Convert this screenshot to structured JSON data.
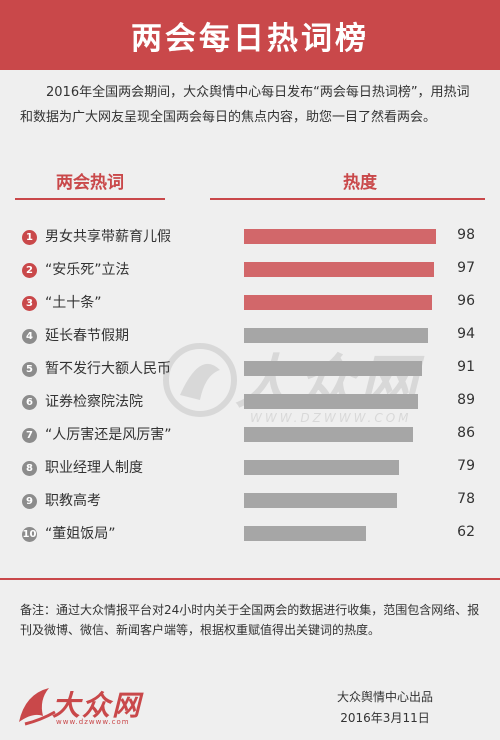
{
  "header": {
    "title": "两会每日热词榜"
  },
  "intro": "2016年全国两会期间，大众舆情中心每日发布“两会每日热词榜”，用热词和数据为广大网友呈现全国两会每日的焦点内容，助您一目了然看两会。",
  "columns": {
    "term": "两会热词",
    "heat": "热度"
  },
  "colors": {
    "accent": "#c9484a",
    "top_bar": "#d2676a",
    "other_bar": "#a6a6a6",
    "top_badge": "#c9484a",
    "other_badge": "#8c8c8c"
  },
  "chart_data": {
    "type": "bar",
    "orientation": "horizontal",
    "title": "两会每日热词榜",
    "xlabel": "热度",
    "ylabel": "两会热词",
    "xlim": [
      0,
      100
    ],
    "categories": [
      "男女共享带薪育儿假",
      "“安乐死”立法",
      "“土十条”",
      "延长春节假期",
      "暂不发行大额人民币",
      "证券检察院法院",
      "“人厉害还是风厉害”",
      "职业经理人制度",
      "职教高考",
      "“董姐饭局”"
    ],
    "ranks": [
      "1",
      "2",
      "3",
      "4",
      "5",
      "6",
      "7",
      "8",
      "9",
      "10"
    ],
    "values": [
      98,
      97,
      96,
      94,
      91,
      89,
      86,
      79,
      78,
      62
    ],
    "highlight_top": 3,
    "grid": false,
    "legend": "none"
  },
  "watermark": {
    "text": "大众网",
    "url": "WWW.DZWWW.COM"
  },
  "note": "备注：通过大众情报平台对24小时内关于全国两会的数据进行收集，范围包含网络、报刊及微博、微信、新闻客户端等，根据权重赋值得出关键词的热度。",
  "footer": {
    "logo_text": "大众网",
    "logo_url": "www.dzwww.com",
    "publisher": "大众舆情中心出品",
    "date": "2016年3月11日"
  }
}
